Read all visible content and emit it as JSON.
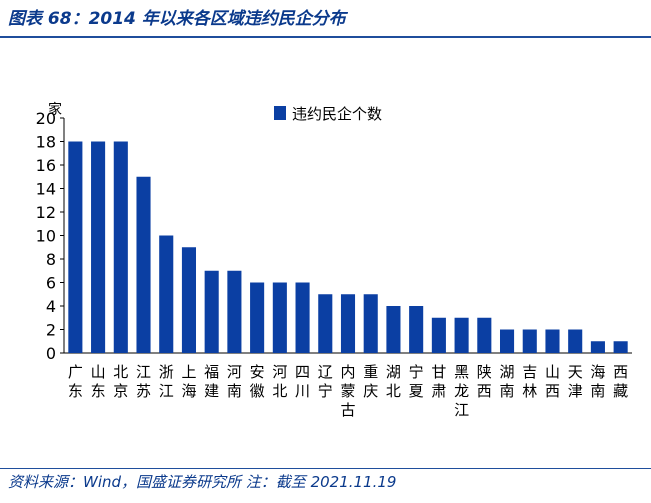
{
  "header": {
    "title": "图表 68：2014 年以来各区域违约民企分布"
  },
  "footer": {
    "source": "资料来源：Wind，国盛证券研究所 注：截至 2021.11.19"
  },
  "colors": {
    "bar": "#0b3fa3",
    "accent": "#1f4e9c"
  },
  "chart_data": {
    "type": "bar",
    "title": "",
    "ylabel": "家",
    "xlabel": "",
    "ylim": [
      0,
      20
    ],
    "yticks": [
      0,
      2,
      4,
      6,
      8,
      10,
      12,
      14,
      16,
      18,
      20
    ],
    "grid": false,
    "legend_position": "top-center",
    "categories": [
      "广东",
      "山东",
      "北京",
      "江苏",
      "浙江",
      "上海",
      "福建",
      "河南",
      "安徽",
      "河北",
      "四川",
      "辽宁",
      "内蒙古",
      "重庆",
      "湖北",
      "宁夏",
      "甘肃",
      "黑龙江",
      "陕西",
      "湖南",
      "吉林",
      "山西",
      "天津",
      "海南",
      "西藏"
    ],
    "series": [
      {
        "name": "违约民企个数",
        "values": [
          18,
          18,
          18,
          15,
          10,
          9,
          7,
          7,
          6,
          6,
          6,
          5,
          5,
          5,
          4,
          4,
          3,
          3,
          3,
          2,
          2,
          2,
          2,
          1,
          1
        ]
      }
    ]
  }
}
